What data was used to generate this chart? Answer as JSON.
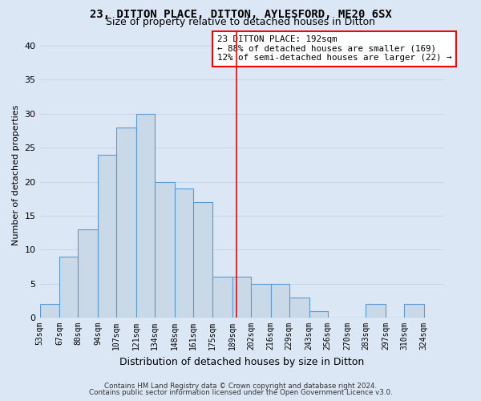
{
  "title1": "23, DITTON PLACE, DITTON, AYLESFORD, ME20 6SX",
  "title2": "Size of property relative to detached houses in Ditton",
  "xlabel": "Distribution of detached houses by size in Ditton",
  "ylabel": "Number of detached properties",
  "bins": [
    "53sqm",
    "67sqm",
    "80sqm",
    "94sqm",
    "107sqm",
    "121sqm",
    "134sqm",
    "148sqm",
    "161sqm",
    "175sqm",
    "189sqm",
    "202sqm",
    "216sqm",
    "229sqm",
    "243sqm",
    "256sqm",
    "270sqm",
    "283sqm",
    "297sqm",
    "310sqm",
    "324sqm"
  ],
  "bin_edges": [
    53,
    67,
    80,
    94,
    107,
    121,
    134,
    148,
    161,
    175,
    189,
    202,
    216,
    229,
    243,
    256,
    270,
    283,
    297,
    310,
    324
  ],
  "values": [
    2,
    9,
    13,
    24,
    28,
    30,
    20,
    19,
    17,
    6,
    6,
    5,
    5,
    3,
    1,
    0,
    0,
    2,
    0,
    2
  ],
  "bar_color": "#c9d9e8",
  "bar_edge_color": "#5b9bd5",
  "ref_line_x": 192,
  "ref_line_color": "red",
  "annotation_line1": "23 DITTON PLACE: 192sqm",
  "annotation_line2": "← 88% of detached houses are smaller (169)",
  "annotation_line3": "12% of semi-detached houses are larger (22) →",
  "annotation_box_color": "white",
  "annotation_box_edge_color": "red",
  "ylim": [
    0,
    42
  ],
  "yticks": [
    0,
    5,
    10,
    15,
    20,
    25,
    30,
    35,
    40
  ],
  "background_color": "#dce7f5",
  "grid_color": "#c8d6e8",
  "footer1": "Contains HM Land Registry data © Crown copyright and database right 2024.",
  "footer2": "Contains public sector information licensed under the Open Government Licence v3.0."
}
